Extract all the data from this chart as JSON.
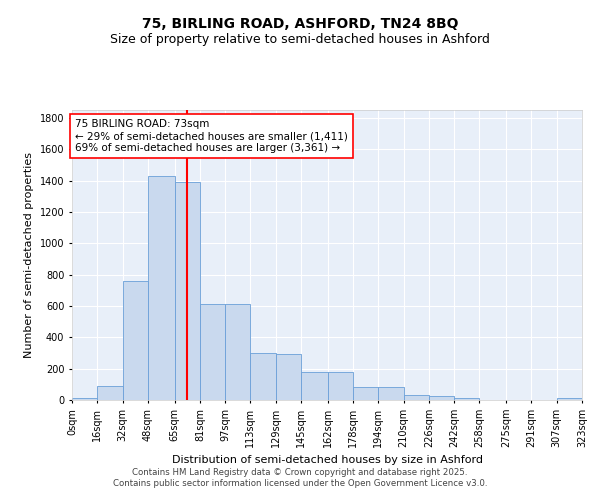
{
  "title": "75, BIRLING ROAD, ASHFORD, TN24 8BQ",
  "subtitle": "Size of property relative to semi-detached houses in Ashford",
  "xlabel": "Distribution of semi-detached houses by size in Ashford",
  "ylabel": "Number of semi-detached properties",
  "bar_color": "#c9d9ee",
  "bar_edge_color": "#6a9fd8",
  "vline_x": 73,
  "vline_color": "red",
  "annotation_text": "75 BIRLING ROAD: 73sqm\n← 29% of semi-detached houses are smaller (1,411)\n69% of semi-detached houses are larger (3,361) →",
  "bins": [
    0,
    16,
    32,
    48,
    65,
    81,
    97,
    113,
    129,
    145,
    162,
    178,
    194,
    210,
    226,
    242,
    258,
    275,
    291,
    307,
    323
  ],
  "bin_labels": [
    "0sqm",
    "16sqm",
    "32sqm",
    "48sqm",
    "65sqm",
    "81sqm",
    "97sqm",
    "113sqm",
    "129sqm",
    "145sqm",
    "162sqm",
    "178sqm",
    "194sqm",
    "210sqm",
    "226sqm",
    "242sqm",
    "258sqm",
    "275sqm",
    "291sqm",
    "307sqm",
    "323sqm"
  ],
  "counts": [
    10,
    90,
    760,
    1430,
    1390,
    610,
    610,
    300,
    295,
    180,
    180,
    80,
    80,
    30,
    25,
    10,
    0,
    0,
    0,
    10
  ],
  "ylim": [
    0,
    1850
  ],
  "yticks": [
    0,
    200,
    400,
    600,
    800,
    1000,
    1200,
    1400,
    1600,
    1800
  ],
  "background_color": "#e8eff9",
  "footer_text": "Contains HM Land Registry data © Crown copyright and database right 2025.\nContains public sector information licensed under the Open Government Licence v3.0.",
  "title_fontsize": 10,
  "subtitle_fontsize": 9,
  "axis_fontsize": 8,
  "tick_fontsize": 7
}
